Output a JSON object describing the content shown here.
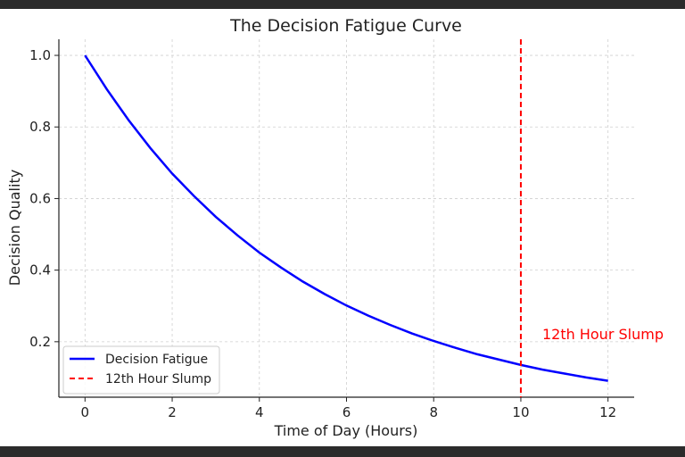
{
  "chart_data": {
    "type": "line",
    "title": "The Decision Fatigue Curve",
    "xlabel": "Time of Day (Hours)",
    "ylabel": "Decision Quality",
    "xlim": [
      -0.6,
      12.6
    ],
    "ylim": [
      0.045,
      1.045
    ],
    "xticks": [
      0,
      2,
      4,
      6,
      8,
      10,
      12
    ],
    "yticks": [
      0.2,
      0.4,
      0.6,
      0.8,
      1.0
    ],
    "ytick_labels": [
      "0.2",
      "0.4",
      "0.6",
      "0.8",
      "1.0"
    ],
    "grid": true,
    "legend_position": "lower-left",
    "series": [
      {
        "name": "Decision Fatigue",
        "color": "#0000ff",
        "style": "solid",
        "x": [
          0,
          0.5,
          1,
          1.5,
          2,
          2.5,
          3,
          3.5,
          4,
          4.5,
          5,
          5.5,
          6,
          6.5,
          7,
          7.5,
          8,
          8.5,
          9,
          9.5,
          10,
          10.5,
          11,
          11.5,
          12
        ],
        "y": [
          1.0,
          0.905,
          0.819,
          0.741,
          0.67,
          0.607,
          0.549,
          0.497,
          0.449,
          0.407,
          0.368,
          0.333,
          0.301,
          0.273,
          0.247,
          0.223,
          0.202,
          0.183,
          0.165,
          0.15,
          0.135,
          0.122,
          0.111,
          0.1,
          0.091
        ]
      },
      {
        "name": "12th Hour Slump",
        "color": "#ff0000",
        "style": "dashed",
        "x_vertical": 10
      }
    ],
    "annotations": [
      {
        "text": "12th Hour Slump",
        "x": 10.5,
        "y": 0.2,
        "color": "#ff0000"
      }
    ]
  }
}
